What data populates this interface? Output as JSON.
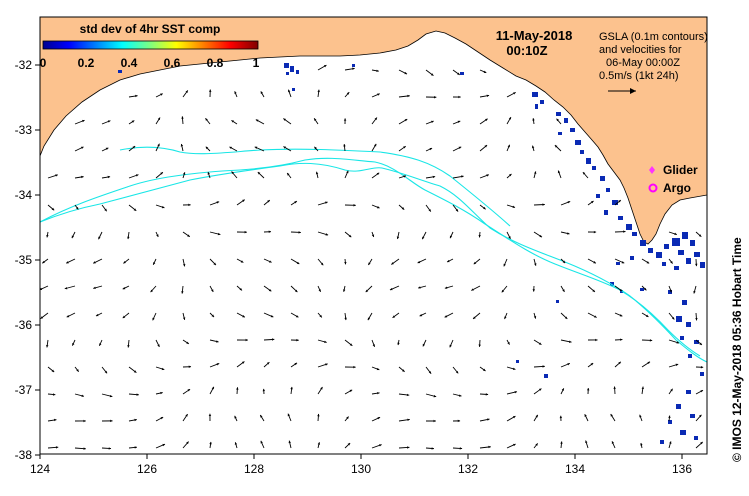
{
  "colorbar": {
    "title": "std dev of 4hr SST comp",
    "ticks": [
      "0",
      "0.2",
      "0.4",
      "0.6",
      "0.8",
      "1"
    ]
  },
  "header": {
    "date": "11-May-2018",
    "time": "00:10Z"
  },
  "info": {
    "line1": "GSLA (0.1m contours)",
    "line2": "and velocities for",
    "line3": "06-May 00:00Z",
    "line4": "0.5m/s (1kt 24h)"
  },
  "legend": {
    "glider": "Glider",
    "argo": "Argo",
    "glider_color": "#ff33ff",
    "argo_color": "#ff00ff"
  },
  "axes": {
    "x_ticks": [
      "124",
      "126",
      "128",
      "130",
      "132",
      "134",
      "136"
    ],
    "y_ticks": [
      "-32",
      "-33",
      "-34",
      "-35",
      "-36",
      "-37",
      "-38"
    ],
    "lon_range": [
      124,
      136.5
    ],
    "lat_range": [
      -31.4,
      -38.1
    ]
  },
  "credit": "© IMOS 12-May-2018 05:36 Hobart Time",
  "colors": {
    "land": "#fcc28e",
    "contour": "#19e6e6",
    "sst_patch": "#0a2ab4"
  }
}
